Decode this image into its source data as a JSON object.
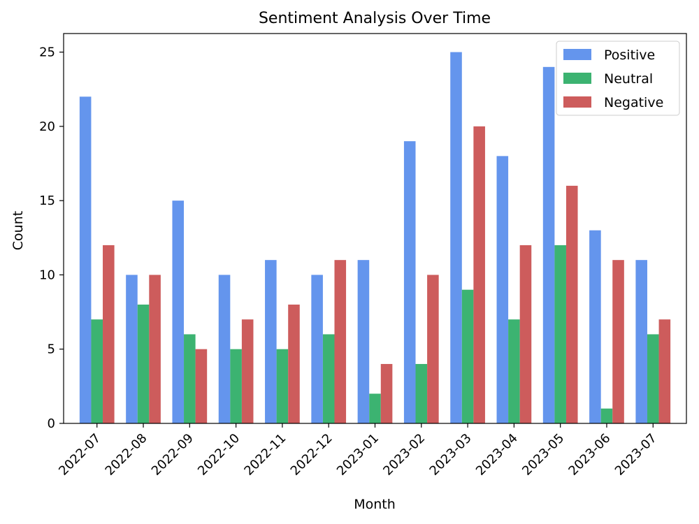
{
  "chart_data": {
    "type": "bar",
    "title": "Sentiment Analysis Over Time",
    "xlabel": "Month",
    "ylabel": "Count",
    "categories": [
      "2022-07",
      "2022-08",
      "2022-09",
      "2022-10",
      "2022-11",
      "2022-12",
      "2023-01",
      "2023-02",
      "2023-03",
      "2023-04",
      "2023-05",
      "2023-06",
      "2023-07"
    ],
    "series": [
      {
        "name": "Positive",
        "color": "#6495ed",
        "values": [
          22,
          10,
          15,
          10,
          11,
          10,
          11,
          19,
          25,
          18,
          24,
          13,
          11
        ]
      },
      {
        "name": "Neutral",
        "color": "#3cb371",
        "values": [
          7,
          8,
          6,
          5,
          5,
          6,
          2,
          4,
          9,
          7,
          12,
          1,
          6
        ]
      },
      {
        "name": "Negative",
        "color": "#cd5c5c",
        "values": [
          12,
          10,
          5,
          7,
          8,
          11,
          4,
          10,
          20,
          12,
          16,
          11,
          7
        ]
      }
    ],
    "ylim": [
      0,
      26.25
    ],
    "yticks": [
      0,
      5,
      10,
      15,
      20,
      25
    ],
    "grid": false,
    "legend_position": "top-right",
    "xtick_rotation": 45
  }
}
